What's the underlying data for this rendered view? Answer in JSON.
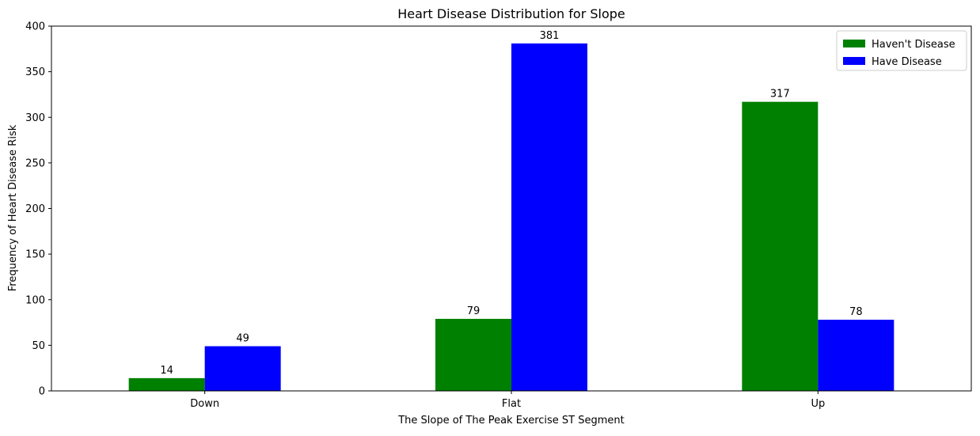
{
  "chart_data": {
    "type": "bar",
    "title": "Heart Disease Distribution for Slope",
    "xlabel": "The Slope of The Peak Exercise ST Segment",
    "ylabel": "Frequency of Heart Disease Risk",
    "categories": [
      "Down",
      "Flat",
      "Up"
    ],
    "series": [
      {
        "name": "Haven't Disease",
        "values": [
          14,
          79,
          317
        ],
        "color": "#008000"
      },
      {
        "name": "Have Disease",
        "values": [
          49,
          381,
          78
        ],
        "color": "#0000ff"
      }
    ],
    "ylim": [
      0,
      400
    ],
    "yticks": [
      0,
      50,
      100,
      150,
      200,
      250,
      300,
      350,
      400
    ],
    "grid": false,
    "legend_position": "top-right",
    "data_labels": true
  }
}
